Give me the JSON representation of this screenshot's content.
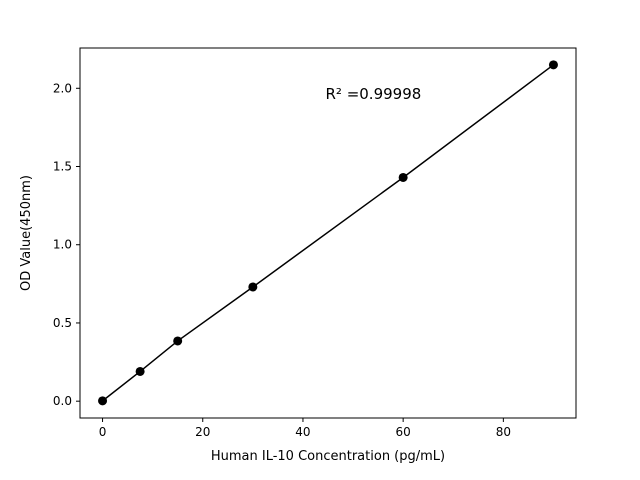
{
  "figure": {
    "background": "#ffffff",
    "axes_color": "#000000",
    "line_color": "#000000",
    "marker_color": "#000000"
  },
  "chart_data": {
    "type": "scatter",
    "title": "",
    "xlabel": "Human IL-10 Concentration (pg/mL)",
    "ylabel": "OD Value(450nm)",
    "x": [
      0,
      7.5,
      15,
      30,
      60,
      90
    ],
    "y": [
      0.002,
      0.19,
      0.385,
      0.73,
      1.43,
      2.15
    ],
    "xlim": [
      -4.5,
      94.5
    ],
    "ylim": [
      -0.1075,
      2.2575
    ],
    "xticks": [
      0,
      20,
      40,
      60,
      80
    ],
    "yticks": [
      0.0,
      0.5,
      1.0,
      1.5,
      2.0
    ],
    "grid": false,
    "legend_position": "none",
    "line_through_points": true,
    "annotation": {
      "text": "R² =0.99998",
      "x": 44.5,
      "y": 1.93
    }
  }
}
